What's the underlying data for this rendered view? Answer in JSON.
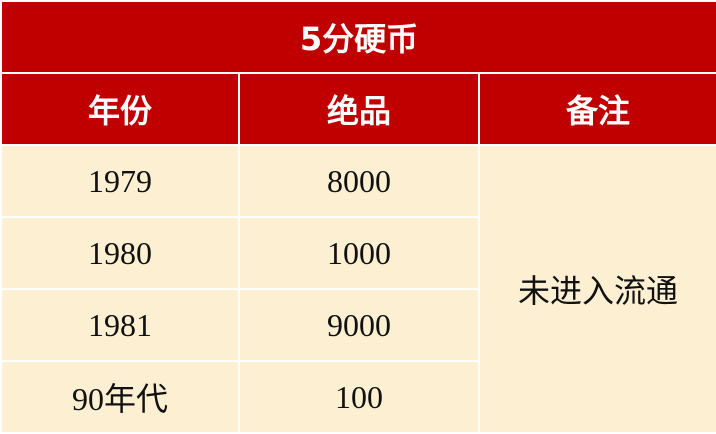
{
  "title": "5分硬币",
  "headers": [
    "年份",
    "绝品",
    "备注"
  ],
  "rows": [
    {
      "year": "1979",
      "value": "8000"
    },
    {
      "year": "1980",
      "value": "1000"
    },
    {
      "year": "1981",
      "value": "9000"
    },
    {
      "year": "90年代",
      "value": "100"
    }
  ],
  "note": "未进入流通",
  "colors": {
    "header_bg": "#c00000",
    "cell_bg": "#fcefd2",
    "border": "#ffffff"
  }
}
